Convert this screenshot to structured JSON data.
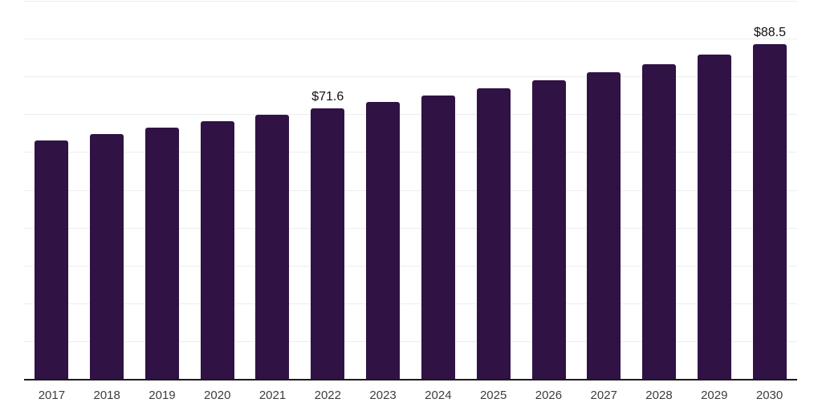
{
  "chart_data": {
    "type": "bar",
    "title": "",
    "xlabel": "",
    "ylabel": "",
    "categories": [
      "2017",
      "2018",
      "2019",
      "2020",
      "2021",
      "2022",
      "2023",
      "2024",
      "2025",
      "2026",
      "2027",
      "2028",
      "2029",
      "2030"
    ],
    "values": [
      63.1,
      64.8,
      66.5,
      68.1,
      69.9,
      71.6,
      73.2,
      74.9,
      76.9,
      79.0,
      81.1,
      83.3,
      85.7,
      88.5
    ],
    "annotations": [
      {
        "index": 5,
        "category": "2022",
        "text": "$71.6"
      },
      {
        "index": 13,
        "category": "2030",
        "text": "$88.5"
      }
    ],
    "ylim": [
      0,
      100
    ],
    "grid_step": 10,
    "grid": "horizontal-only",
    "legend": "none",
    "currency_prefix": "$",
    "colors": {
      "bar": "#301245",
      "gridline": "#ededed",
      "axis_line": "#1c1c1c",
      "tick_label": "#3d3d3d",
      "annotation_text": "#111111",
      "background": "#ffffff"
    }
  }
}
